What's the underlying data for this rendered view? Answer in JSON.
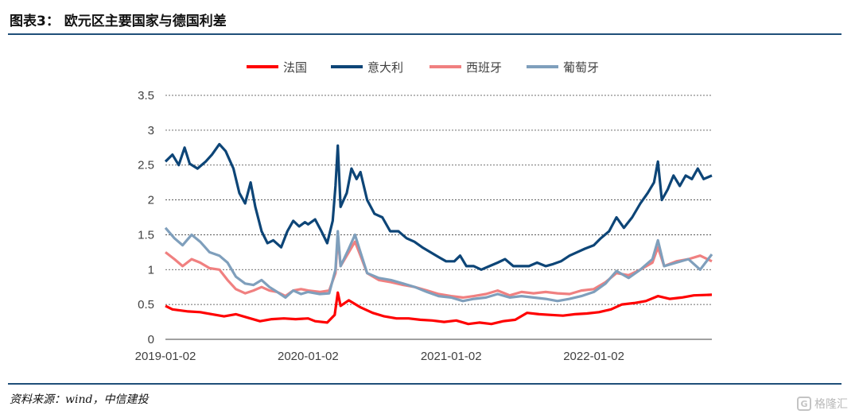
{
  "header": {
    "title": "图表3： 欧元区主要国家与德国利差"
  },
  "footer": {
    "source": "资料来源：wind，中信建投",
    "watermark": "格隆汇",
    "watermark_icon": "G"
  },
  "chart_data": {
    "type": "line",
    "xlabel": "",
    "ylabel": "",
    "ylim": [
      0,
      3.5
    ],
    "yticks": [
      "0",
      "0.5",
      "1",
      "1.5",
      "2",
      "2.5",
      "3",
      "3.5"
    ],
    "xticks": [
      "2019-01-02",
      "2020-01-02",
      "2021-01-02",
      "2022-01-02"
    ],
    "x_range": [
      "2019-01-02",
      "2022-10-31"
    ],
    "grid": "horizontal dashed",
    "legend_position": "top",
    "series": [
      {
        "name": "法国",
        "color": "#ff0000",
        "points": [
          [
            "2019-01-02",
            0.48
          ],
          [
            "2019-01-20",
            0.43
          ],
          [
            "2019-03-01",
            0.4
          ],
          [
            "2019-04-01",
            0.39
          ],
          [
            "2019-05-01",
            0.36
          ],
          [
            "2019-06-01",
            0.33
          ],
          [
            "2019-07-01",
            0.36
          ],
          [
            "2019-08-01",
            0.31
          ],
          [
            "2019-09-01",
            0.26
          ],
          [
            "2019-10-01",
            0.29
          ],
          [
            "2019-11-01",
            0.3
          ],
          [
            "2019-12-01",
            0.29
          ],
          [
            "2020-01-02",
            0.3
          ],
          [
            "2020-01-20",
            0.26
          ],
          [
            "2020-02-20",
            0.24
          ],
          [
            "2020-03-10",
            0.35
          ],
          [
            "2020-03-18",
            0.67
          ],
          [
            "2020-03-25",
            0.48
          ],
          [
            "2020-04-15",
            0.56
          ],
          [
            "2020-05-15",
            0.46
          ],
          [
            "2020-06-15",
            0.38
          ],
          [
            "2020-07-15",
            0.33
          ],
          [
            "2020-08-15",
            0.3
          ],
          [
            "2020-09-15",
            0.3
          ],
          [
            "2020-10-15",
            0.28
          ],
          [
            "2020-11-15",
            0.27
          ],
          [
            "2020-12-15",
            0.25
          ],
          [
            "2021-01-15",
            0.27
          ],
          [
            "2021-02-15",
            0.22
          ],
          [
            "2021-03-15",
            0.24
          ],
          [
            "2021-04-15",
            0.22
          ],
          [
            "2021-05-15",
            0.26
          ],
          [
            "2021-06-15",
            0.28
          ],
          [
            "2021-07-15",
            0.38
          ],
          [
            "2021-08-15",
            0.36
          ],
          [
            "2021-09-15",
            0.35
          ],
          [
            "2021-10-15",
            0.34
          ],
          [
            "2021-11-15",
            0.36
          ],
          [
            "2021-12-15",
            0.37
          ],
          [
            "2022-01-15",
            0.39
          ],
          [
            "2022-02-15",
            0.43
          ],
          [
            "2022-03-15",
            0.5
          ],
          [
            "2022-04-15",
            0.52
          ],
          [
            "2022-05-15",
            0.55
          ],
          [
            "2022-06-15",
            0.62
          ],
          [
            "2022-07-15",
            0.58
          ],
          [
            "2022-08-15",
            0.6
          ],
          [
            "2022-09-15",
            0.63
          ],
          [
            "2022-10-31",
            0.64
          ]
        ]
      },
      {
        "name": "意大利",
        "color": "#0d4577",
        "points": [
          [
            "2019-01-02",
            2.55
          ],
          [
            "2019-01-20",
            2.65
          ],
          [
            "2019-02-05",
            2.5
          ],
          [
            "2019-02-20",
            2.75
          ],
          [
            "2019-03-05",
            2.52
          ],
          [
            "2019-03-25",
            2.45
          ],
          [
            "2019-04-15",
            2.55
          ],
          [
            "2019-05-01",
            2.65
          ],
          [
            "2019-05-20",
            2.8
          ],
          [
            "2019-06-05",
            2.7
          ],
          [
            "2019-06-25",
            2.45
          ],
          [
            "2019-07-10",
            2.1
          ],
          [
            "2019-07-25",
            1.95
          ],
          [
            "2019-08-08",
            2.25
          ],
          [
            "2019-08-20",
            1.9
          ],
          [
            "2019-09-05",
            1.55
          ],
          [
            "2019-09-20",
            1.38
          ],
          [
            "2019-10-05",
            1.42
          ],
          [
            "2019-10-25",
            1.32
          ],
          [
            "2019-11-10",
            1.55
          ],
          [
            "2019-11-25",
            1.7
          ],
          [
            "2019-12-10",
            1.62
          ],
          [
            "2019-12-25",
            1.68
          ],
          [
            "2020-01-02",
            1.65
          ],
          [
            "2020-01-20",
            1.72
          ],
          [
            "2020-02-05",
            1.55
          ],
          [
            "2020-02-20",
            1.38
          ],
          [
            "2020-03-05",
            1.7
          ],
          [
            "2020-03-12",
            2.2
          ],
          [
            "2020-03-18",
            2.78
          ],
          [
            "2020-03-25",
            1.9
          ],
          [
            "2020-04-10",
            2.1
          ],
          [
            "2020-04-22",
            2.45
          ],
          [
            "2020-05-05",
            2.3
          ],
          [
            "2020-05-15",
            2.4
          ],
          [
            "2020-06-01",
            2.0
          ],
          [
            "2020-06-20",
            1.8
          ],
          [
            "2020-07-10",
            1.75
          ],
          [
            "2020-07-30",
            1.55
          ],
          [
            "2020-08-20",
            1.55
          ],
          [
            "2020-09-10",
            1.45
          ],
          [
            "2020-09-30",
            1.4
          ],
          [
            "2020-10-20",
            1.32
          ],
          [
            "2020-11-10",
            1.25
          ],
          [
            "2020-12-01",
            1.18
          ],
          [
            "2020-12-20",
            1.12
          ],
          [
            "2021-01-10",
            1.12
          ],
          [
            "2021-01-25",
            1.2
          ],
          [
            "2021-02-10",
            1.05
          ],
          [
            "2021-03-01",
            1.05
          ],
          [
            "2021-03-20",
            1.0
          ],
          [
            "2021-04-10",
            1.05
          ],
          [
            "2021-05-01",
            1.1
          ],
          [
            "2021-05-20",
            1.15
          ],
          [
            "2021-06-10",
            1.05
          ],
          [
            "2021-07-01",
            1.05
          ],
          [
            "2021-07-20",
            1.05
          ],
          [
            "2021-08-10",
            1.1
          ],
          [
            "2021-09-01",
            1.05
          ],
          [
            "2021-09-20",
            1.08
          ],
          [
            "2021-10-10",
            1.12
          ],
          [
            "2021-11-01",
            1.2
          ],
          [
            "2021-11-20",
            1.25
          ],
          [
            "2021-12-10",
            1.3
          ],
          [
            "2022-01-02",
            1.35
          ],
          [
            "2022-01-20",
            1.45
          ],
          [
            "2022-02-10",
            1.55
          ],
          [
            "2022-03-01",
            1.75
          ],
          [
            "2022-03-20",
            1.6
          ],
          [
            "2022-04-10",
            1.75
          ],
          [
            "2022-05-01",
            1.95
          ],
          [
            "2022-05-20",
            2.1
          ],
          [
            "2022-06-05",
            2.25
          ],
          [
            "2022-06-15",
            2.55
          ],
          [
            "2022-06-25",
            2.0
          ],
          [
            "2022-07-10",
            2.15
          ],
          [
            "2022-07-25",
            2.35
          ],
          [
            "2022-08-10",
            2.2
          ],
          [
            "2022-08-25",
            2.35
          ],
          [
            "2022-09-10",
            2.3
          ],
          [
            "2022-09-25",
            2.45
          ],
          [
            "2022-10-10",
            2.3
          ],
          [
            "2022-10-31",
            2.35
          ]
        ]
      },
      {
        "name": "西班牙",
        "color": "#f08080",
        "points": [
          [
            "2019-01-02",
            1.25
          ],
          [
            "2019-01-25",
            1.15
          ],
          [
            "2019-02-15",
            1.05
          ],
          [
            "2019-03-10",
            1.15
          ],
          [
            "2019-04-01",
            1.1
          ],
          [
            "2019-04-25",
            1.02
          ],
          [
            "2019-05-20",
            1.0
          ],
          [
            "2019-06-10",
            0.85
          ],
          [
            "2019-07-01",
            0.72
          ],
          [
            "2019-07-25",
            0.66
          ],
          [
            "2019-08-15",
            0.7
          ],
          [
            "2019-09-05",
            0.75
          ],
          [
            "2019-09-25",
            0.7
          ],
          [
            "2019-10-15",
            0.68
          ],
          [
            "2019-11-05",
            0.62
          ],
          [
            "2019-11-25",
            0.7
          ],
          [
            "2019-12-15",
            0.72
          ],
          [
            "2020-01-02",
            0.7
          ],
          [
            "2020-02-01",
            0.68
          ],
          [
            "2020-02-25",
            0.7
          ],
          [
            "2020-03-12",
            0.95
          ],
          [
            "2020-03-18",
            1.48
          ],
          [
            "2020-03-25",
            1.05
          ],
          [
            "2020-04-15",
            1.25
          ],
          [
            "2020-05-01",
            1.4
          ],
          [
            "2020-05-15",
            1.2
          ],
          [
            "2020-06-01",
            0.95
          ],
          [
            "2020-07-01",
            0.85
          ],
          [
            "2020-08-01",
            0.82
          ],
          [
            "2020-09-01",
            0.78
          ],
          [
            "2020-10-01",
            0.75
          ],
          [
            "2020-11-01",
            0.7
          ],
          [
            "2020-12-01",
            0.65
          ],
          [
            "2021-01-02",
            0.62
          ],
          [
            "2021-02-01",
            0.6
          ],
          [
            "2021-03-01",
            0.62
          ],
          [
            "2021-04-01",
            0.65
          ],
          [
            "2021-05-01",
            0.7
          ],
          [
            "2021-06-01",
            0.63
          ],
          [
            "2021-07-01",
            0.68
          ],
          [
            "2021-08-01",
            0.66
          ],
          [
            "2021-09-01",
            0.68
          ],
          [
            "2021-10-01",
            0.66
          ],
          [
            "2021-11-01",
            0.65
          ],
          [
            "2021-12-01",
            0.7
          ],
          [
            "2022-01-02",
            0.72
          ],
          [
            "2022-02-01",
            0.82
          ],
          [
            "2022-03-01",
            0.95
          ],
          [
            "2022-04-01",
            0.92
          ],
          [
            "2022-05-01",
            1.0
          ],
          [
            "2022-06-01",
            1.1
          ],
          [
            "2022-06-15",
            1.32
          ],
          [
            "2022-07-01",
            1.05
          ],
          [
            "2022-08-01",
            1.12
          ],
          [
            "2022-09-01",
            1.15
          ],
          [
            "2022-10-01",
            1.2
          ],
          [
            "2022-10-31",
            1.12
          ]
        ]
      },
      {
        "name": "葡萄牙",
        "color": "#7f9fbc",
        "points": [
          [
            "2019-01-02",
            1.6
          ],
          [
            "2019-01-25",
            1.45
          ],
          [
            "2019-02-15",
            1.35
          ],
          [
            "2019-03-10",
            1.5
          ],
          [
            "2019-04-01",
            1.4
          ],
          [
            "2019-04-25",
            1.25
          ],
          [
            "2019-05-20",
            1.2
          ],
          [
            "2019-06-10",
            1.1
          ],
          [
            "2019-07-01",
            0.9
          ],
          [
            "2019-07-25",
            0.8
          ],
          [
            "2019-08-15",
            0.78
          ],
          [
            "2019-09-05",
            0.85
          ],
          [
            "2019-09-25",
            0.75
          ],
          [
            "2019-10-15",
            0.68
          ],
          [
            "2019-11-05",
            0.6
          ],
          [
            "2019-11-25",
            0.7
          ],
          [
            "2019-12-15",
            0.65
          ],
          [
            "2020-01-02",
            0.68
          ],
          [
            "2020-02-01",
            0.65
          ],
          [
            "2020-02-25",
            0.66
          ],
          [
            "2020-03-12",
            1.0
          ],
          [
            "2020-03-18",
            1.55
          ],
          [
            "2020-03-25",
            1.05
          ],
          [
            "2020-04-15",
            1.3
          ],
          [
            "2020-05-01",
            1.5
          ],
          [
            "2020-05-15",
            1.25
          ],
          [
            "2020-06-01",
            0.95
          ],
          [
            "2020-07-01",
            0.88
          ],
          [
            "2020-08-01",
            0.85
          ],
          [
            "2020-09-01",
            0.8
          ],
          [
            "2020-10-01",
            0.75
          ],
          [
            "2020-11-01",
            0.68
          ],
          [
            "2020-12-01",
            0.62
          ],
          [
            "2021-01-02",
            0.6
          ],
          [
            "2021-02-01",
            0.55
          ],
          [
            "2021-03-01",
            0.58
          ],
          [
            "2021-04-01",
            0.6
          ],
          [
            "2021-05-01",
            0.65
          ],
          [
            "2021-06-01",
            0.6
          ],
          [
            "2021-07-01",
            0.62
          ],
          [
            "2021-08-01",
            0.6
          ],
          [
            "2021-09-01",
            0.58
          ],
          [
            "2021-10-01",
            0.55
          ],
          [
            "2021-11-01",
            0.58
          ],
          [
            "2021-12-01",
            0.62
          ],
          [
            "2022-01-02",
            0.68
          ],
          [
            "2022-02-01",
            0.8
          ],
          [
            "2022-03-01",
            0.98
          ],
          [
            "2022-04-01",
            0.88
          ],
          [
            "2022-05-01",
            1.0
          ],
          [
            "2022-06-01",
            1.15
          ],
          [
            "2022-06-15",
            1.42
          ],
          [
            "2022-07-01",
            1.05
          ],
          [
            "2022-08-01",
            1.1
          ],
          [
            "2022-09-01",
            1.15
          ],
          [
            "2022-10-01",
            1.0
          ],
          [
            "2022-10-31",
            1.22
          ]
        ]
      }
    ]
  }
}
